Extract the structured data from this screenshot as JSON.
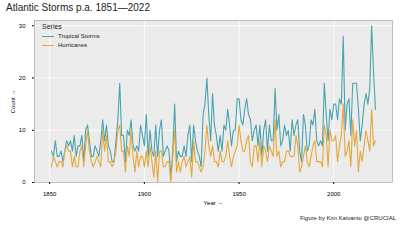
{
  "chart_data": {
    "type": "line",
    "title": "Atlantic Storms p.a. 1851—2022",
    "x_label": "Year",
    "y_label": "Count",
    "caption": "Figure by Kim Kaivanto @CRUCIAL",
    "legend_title": "Series",
    "legend": "top-left",
    "grid": true,
    "xlim": [
      1842,
      2031
    ],
    "xticks": [
      1850,
      1900,
      1950,
      2000
    ],
    "ylim": [
      0,
      31
    ],
    "yticks": [
      0,
      10,
      20,
      30
    ],
    "x": [
      1851,
      1852,
      1853,
      1854,
      1855,
      1856,
      1857,
      1858,
      1859,
      1860,
      1861,
      1862,
      1863,
      1864,
      1865,
      1866,
      1867,
      1868,
      1869,
      1870,
      1871,
      1872,
      1873,
      1874,
      1875,
      1876,
      1877,
      1878,
      1879,
      1880,
      1881,
      1882,
      1883,
      1884,
      1885,
      1886,
      1887,
      1888,
      1889,
      1890,
      1891,
      1892,
      1893,
      1894,
      1895,
      1896,
      1897,
      1898,
      1899,
      1900,
      1901,
      1902,
      1903,
      1904,
      1905,
      1906,
      1907,
      1908,
      1909,
      1910,
      1911,
      1912,
      1913,
      1914,
      1915,
      1916,
      1917,
      1918,
      1919,
      1920,
      1921,
      1922,
      1923,
      1924,
      1925,
      1926,
      1927,
      1928,
      1929,
      1930,
      1931,
      1932,
      1933,
      1934,
      1935,
      1936,
      1937,
      1938,
      1939,
      1940,
      1941,
      1942,
      1943,
      1944,
      1945,
      1946,
      1947,
      1948,
      1949,
      1950,
      1951,
      1952,
      1953,
      1954,
      1955,
      1956,
      1957,
      1958,
      1959,
      1960,
      1961,
      1962,
      1963,
      1964,
      1965,
      1966,
      1967,
      1968,
      1969,
      1970,
      1971,
      1972,
      1973,
      1974,
      1975,
      1976,
      1977,
      1978,
      1979,
      1980,
      1981,
      1982,
      1983,
      1984,
      1985,
      1986,
      1987,
      1988,
      1989,
      1990,
      1991,
      1992,
      1993,
      1994,
      1995,
      1996,
      1997,
      1998,
      1999,
      2000,
      2001,
      2002,
      2003,
      2004,
      2005,
      2006,
      2007,
      2008,
      2009,
      2010,
      2011,
      2012,
      2013,
      2014,
      2015,
      2016,
      2017,
      2018,
      2019,
      2020,
      2021,
      2022
    ],
    "series": [
      {
        "name": "Tropical Storms",
        "color": "#4aa3ae",
        "values": [
          6,
          5,
          8,
          5,
          5,
          6,
          4,
          6,
          8,
          7,
          8,
          6,
          9,
          5,
          7,
          7,
          9,
          4,
          10,
          11,
          8,
          5,
          5,
          7,
          6,
          5,
          8,
          12,
          8,
          11,
          7,
          6,
          4,
          4,
          8,
          12,
          19,
          9,
          9,
          4,
          10,
          9,
          12,
          7,
          6,
          7,
          6,
          11,
          9,
          7,
          13,
          5,
          10,
          6,
          5,
          11,
          5,
          10,
          12,
          5,
          6,
          7,
          6,
          1,
          6,
          15,
          4,
          6,
          5,
          5,
          7,
          5,
          9,
          11,
          4,
          11,
          8,
          6,
          5,
          3,
          13,
          15,
          20,
          13,
          8,
          17,
          11,
          9,
          6,
          9,
          6,
          11,
          10,
          14,
          11,
          7,
          10,
          10,
          16,
          16,
          12,
          11,
          14,
          16,
          13,
          12,
          8,
          10,
          11,
          7,
          11,
          5,
          10,
          12,
          6,
          11,
          8,
          8,
          18,
          10,
          13,
          7,
          8,
          11,
          9,
          10,
          6,
          12,
          9,
          11,
          12,
          6,
          4,
          13,
          11,
          6,
          7,
          12,
          11,
          14,
          8,
          7,
          8,
          7,
          19,
          13,
          8,
          14,
          12,
          15,
          15,
          12,
          16,
          15,
          28,
          10,
          15,
          16,
          9,
          19,
          19,
          19,
          14,
          8,
          11,
          15,
          17,
          15,
          18,
          30,
          21,
          14
        ]
      },
      {
        "name": "Hurricanes",
        "color": "#e4a83c",
        "values": [
          3,
          5,
          4,
          3,
          4,
          4,
          3,
          6,
          7,
          6,
          6,
          3,
          5,
          3,
          3,
          6,
          7,
          3,
          7,
          10,
          6,
          4,
          3,
          4,
          5,
          4,
          3,
          10,
          6,
          9,
          4,
          4,
          3,
          4,
          6,
          10,
          11,
          6,
          6,
          2,
          7,
          5,
          10,
          5,
          2,
          6,
          3,
          5,
          5,
          3,
          6,
          3,
          7,
          4,
          1,
          6,
          0,
          6,
          6,
          3,
          3,
          4,
          4,
          0,
          5,
          10,
          2,
          4,
          2,
          4,
          5,
          3,
          4,
          5,
          1,
          8,
          4,
          4,
          3,
          2,
          3,
          6,
          11,
          7,
          5,
          7,
          4,
          4,
          3,
          6,
          4,
          4,
          5,
          8,
          5,
          3,
          5,
          6,
          7,
          11,
          8,
          6,
          6,
          8,
          9,
          4,
          3,
          7,
          7,
          4,
          8,
          3,
          7,
          6,
          4,
          7,
          6,
          5,
          12,
          5,
          6,
          3,
          4,
          4,
          6,
          6,
          5,
          5,
          5,
          9,
          7,
          2,
          3,
          5,
          7,
          4,
          3,
          5,
          7,
          8,
          4,
          4,
          4,
          3,
          11,
          9,
          3,
          10,
          8,
          8,
          9,
          4,
          7,
          9,
          15,
          5,
          6,
          8,
          3,
          12,
          7,
          10,
          2,
          6,
          4,
          7,
          10,
          8,
          6,
          14,
          7,
          8
        ]
      }
    ]
  }
}
